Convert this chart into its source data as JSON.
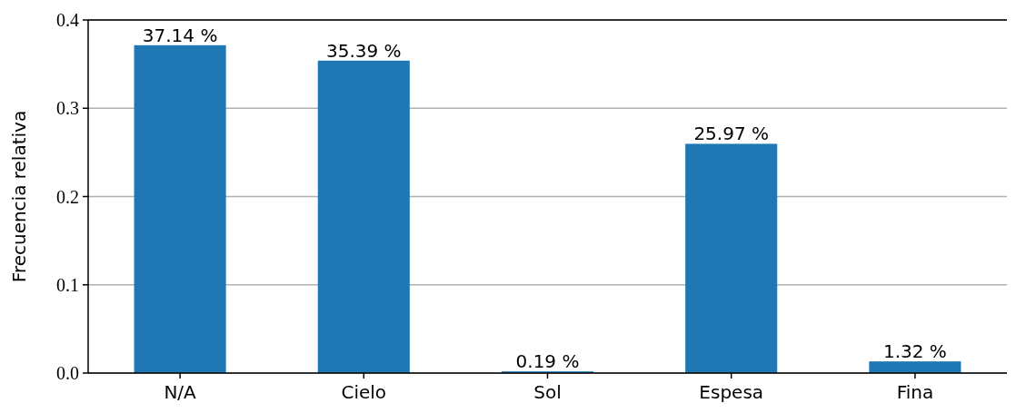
{
  "chart_data": {
    "type": "bar",
    "ylabel": "Frecuencia relativa",
    "categories": [
      "N/A",
      "Cielo",
      "Sol",
      "Espesa",
      "Fina"
    ],
    "values": [
      0.3714,
      0.3539,
      0.0019,
      0.2597,
      0.0132
    ],
    "value_labels": [
      "37.14 %",
      "35.39 %",
      "0.19 %",
      "25.97 %",
      "1.32 %"
    ],
    "color": "#1f77b4",
    "ylim": [
      0,
      0.4
    ],
    "yticks": [
      {
        "value": 0,
        "label": "0.0"
      },
      {
        "value": 0.1,
        "label": "0.1"
      },
      {
        "value": 0.2,
        "label": "0.2"
      },
      {
        "value": 0.3,
        "label": "0.3"
      },
      {
        "value": 0.4,
        "label": "0.4"
      }
    ],
    "grid": "y"
  }
}
